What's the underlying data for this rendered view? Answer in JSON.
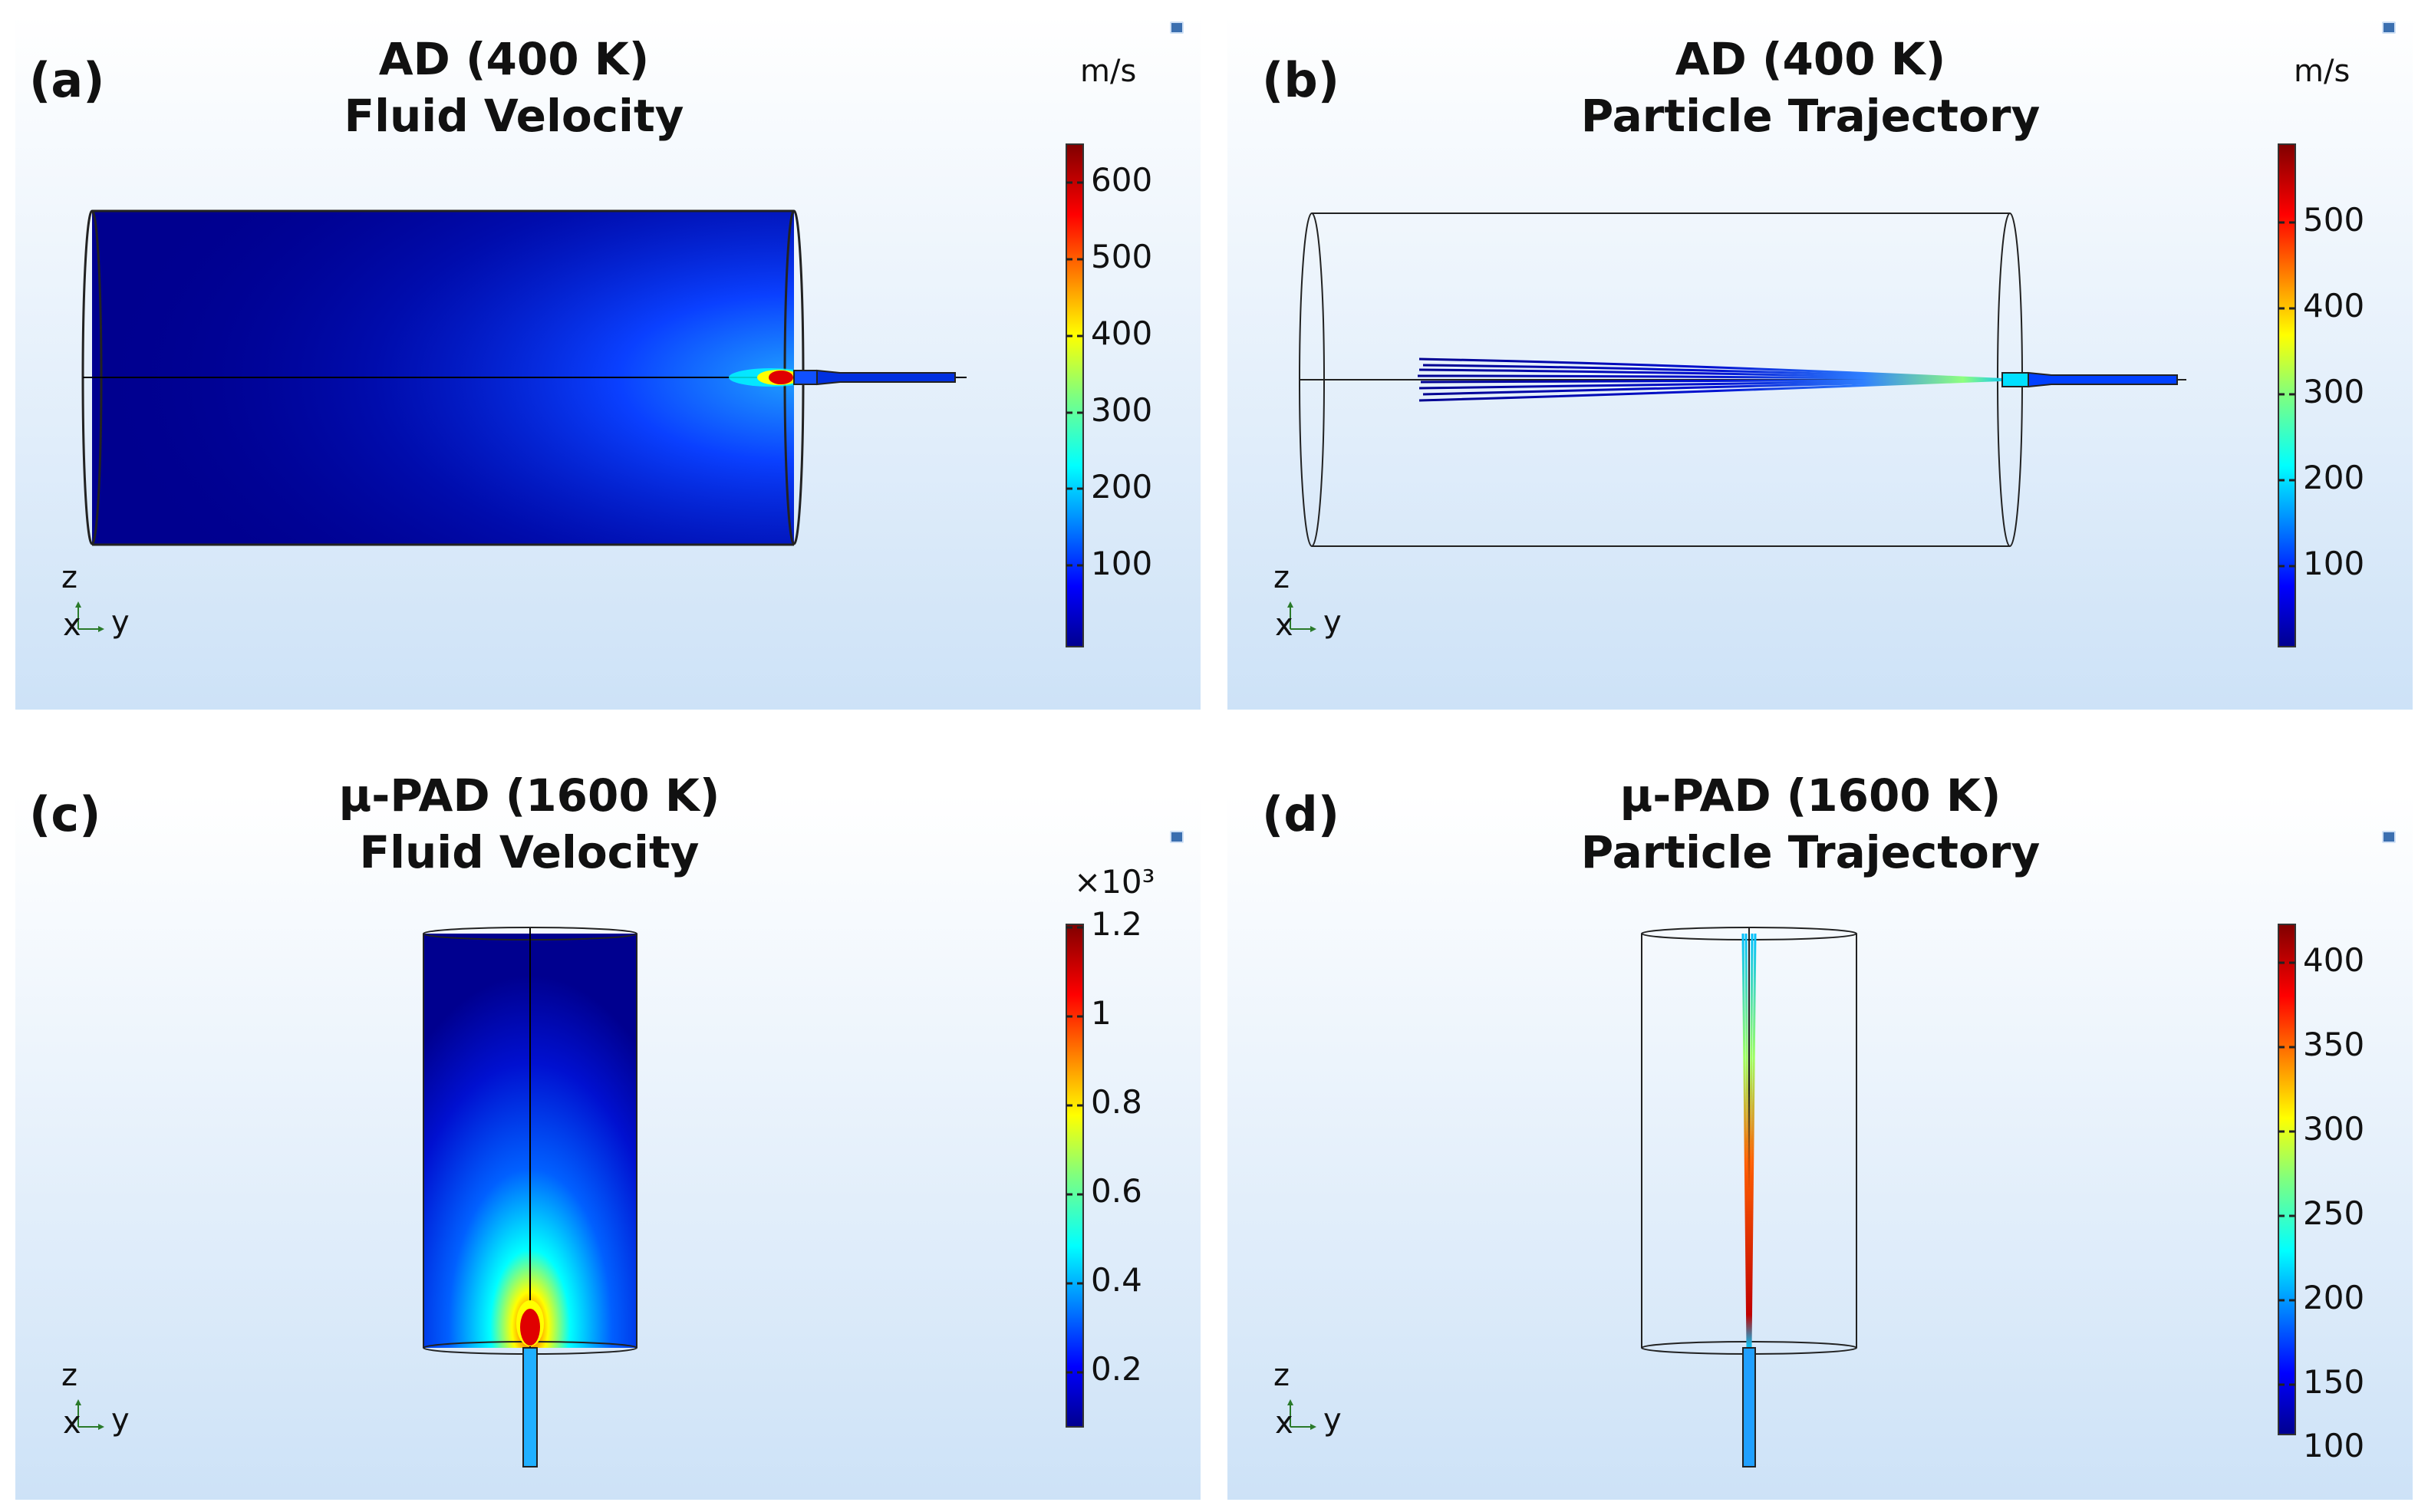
{
  "panels": [
    {
      "label": "(a)",
      "title_line1": "AD (400 K)",
      "title_line2": "Fluid Velocity",
      "unit": "m/s",
      "colorbar": {
        "ticks": [
          "600",
          "500",
          "400",
          "300",
          "200",
          "100"
        ]
      }
    },
    {
      "label": "(b)",
      "title_line1": "AD (400 K)",
      "title_line2": "Particle Trajectory",
      "unit": "m/s",
      "colorbar": {
        "ticks": [
          "500",
          "400",
          "300",
          "200",
          "100"
        ]
      }
    },
    {
      "label": "(c)",
      "title_line1": "μ-PAD (1600 K)",
      "title_line2": "Fluid Velocity",
      "unit": "×10³",
      "colorbar": {
        "ticks": [
          "1.2",
          "1",
          "0.8",
          "0.6",
          "0.4",
          "0.2"
        ]
      }
    },
    {
      "label": "(d)",
      "title_line1": "μ-PAD (1600 K)",
      "title_line2": "Particle Trajectory",
      "unit": "",
      "colorbar": {
        "ticks": [
          "400",
          "350",
          "300",
          "250",
          "200",
          "150",
          "100"
        ]
      }
    }
  ],
  "axes_triad": {
    "z": "z",
    "x": "x",
    "y": "y"
  },
  "colors": {
    "bg_top": "#ffffff",
    "bg_bottom": "#cfe3f7",
    "jet_low": "#00008f",
    "jet_high": "#800000"
  }
}
